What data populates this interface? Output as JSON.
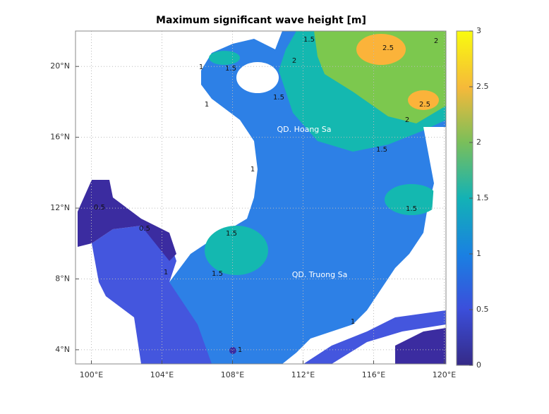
{
  "title": "Maximum significant wave height [m]",
  "xlim": [
    99.1,
    120.1
  ],
  "ylim": [
    3.2,
    22
  ],
  "xticks": [
    {
      "value": 100,
      "label": "100°E"
    },
    {
      "value": 104,
      "label": "104°E"
    },
    {
      "value": 108,
      "label": "108°E"
    },
    {
      "value": 112,
      "label": "112°E"
    },
    {
      "value": 116,
      "label": "116°E"
    },
    {
      "value": 120,
      "label": "120°E"
    }
  ],
  "yticks": [
    {
      "value": 4,
      "label": "4°N"
    },
    {
      "value": 8,
      "label": "8°N"
    },
    {
      "value": 12,
      "label": "12°N"
    },
    {
      "value": 16,
      "label": "16°N"
    },
    {
      "value": 20,
      "label": "20°N"
    }
  ],
  "colorbar": {
    "lim": [
      0,
      3
    ],
    "ticks": [
      0,
      0.5,
      1,
      1.5,
      2,
      2.5,
      3
    ]
  },
  "places": [
    "QD. Hoang Sa",
    "QD. Truong Sa"
  ],
  "contour_labels": [
    1.5,
    1,
    1.5,
    2,
    1.5,
    2,
    2.5,
    2,
    2.5,
    1.5,
    1.5,
    1,
    0.5,
    0.5,
    1.5,
    1.5,
    1,
    1,
    1,
    1
  ]
}
